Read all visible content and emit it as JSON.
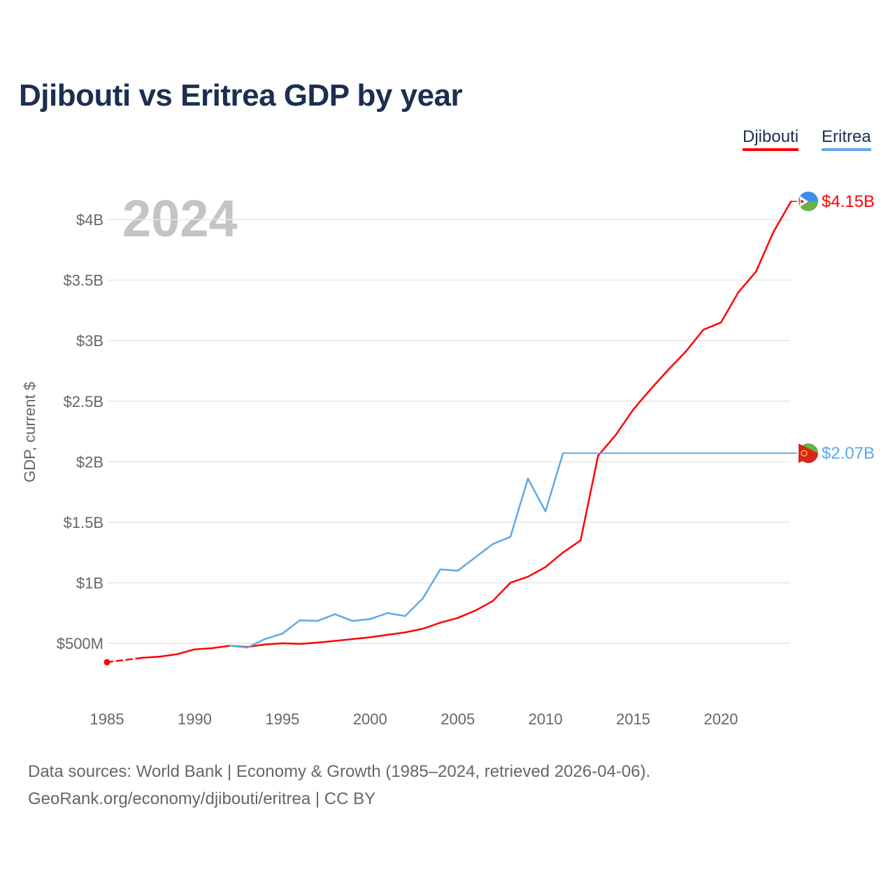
{
  "chart_data": {
    "type": "line",
    "title": "Djibouti vs Eritrea GDP by year",
    "ylabel": "GDP, current $",
    "xlabel": "",
    "year_watermark": "2024",
    "xlim": [
      1985,
      2024
    ],
    "ylim": [
      0,
      4.35
    ],
    "y_unit": "billion USD",
    "grid": true,
    "legend_position": "top-right",
    "x_ticks": [
      1985,
      1990,
      1995,
      2000,
      2005,
      2010,
      2015,
      2020
    ],
    "x_tick_labels": [
      "1985",
      "1990",
      "1995",
      "2000",
      "2005",
      "2010",
      "2015",
      "2020"
    ],
    "y_ticks": [
      0.5,
      1,
      1.5,
      2,
      2.5,
      3,
      3.5,
      4
    ],
    "y_tick_labels": [
      "$500M",
      "$1B",
      "$1.5B",
      "$2B",
      "$2.5B",
      "$3B",
      "$3.5B",
      "$4B"
    ],
    "x": [
      1985,
      1986,
      1987,
      1988,
      1989,
      1990,
      1991,
      1992,
      1993,
      1994,
      1995,
      1996,
      1997,
      1998,
      1999,
      2000,
      2001,
      2002,
      2003,
      2004,
      2005,
      2006,
      2007,
      2008,
      2009,
      2010,
      2011,
      2012,
      2013,
      2014,
      2015,
      2016,
      2017,
      2018,
      2019,
      2020,
      2021,
      2022,
      2023,
      2024
    ],
    "series": [
      {
        "name": "Djibouti",
        "color": "#ff0000",
        "end_label": "$4.15B",
        "values": [
          0.344,
          null,
          0.38,
          0.39,
          0.41,
          0.45,
          0.46,
          0.48,
          0.47,
          0.49,
          0.5,
          0.495,
          0.506,
          0.52,
          0.535,
          0.55,
          0.57,
          0.59,
          0.62,
          0.67,
          0.71,
          0.77,
          0.85,
          1.0,
          1.05,
          1.13,
          1.25,
          1.35,
          2.05,
          2.22,
          2.43,
          2.6,
          2.76,
          2.91,
          3.09,
          3.15,
          3.4,
          3.57,
          3.9,
          4.15
        ]
      },
      {
        "name": "Eritrea",
        "color": "#5ea8e8",
        "end_label": "$2.07B",
        "values": [
          null,
          null,
          null,
          null,
          null,
          null,
          null,
          0.48,
          0.465,
          0.535,
          0.58,
          0.69,
          0.685,
          0.74,
          0.685,
          0.7,
          0.75,
          0.725,
          0.87,
          1.11,
          1.1,
          1.21,
          1.32,
          1.38,
          1.86,
          1.59,
          2.07,
          null,
          null,
          null,
          null,
          null,
          null,
          null,
          null,
          null,
          null,
          null,
          null,
          null
        ]
      }
    ]
  },
  "footer": {
    "line1": "Data sources: World Bank | Economy & Growth (1985–2024, retrieved 2026-04-06).",
    "line2": "GeoRank.org/economy/djibouti/eritrea | CC BY"
  }
}
